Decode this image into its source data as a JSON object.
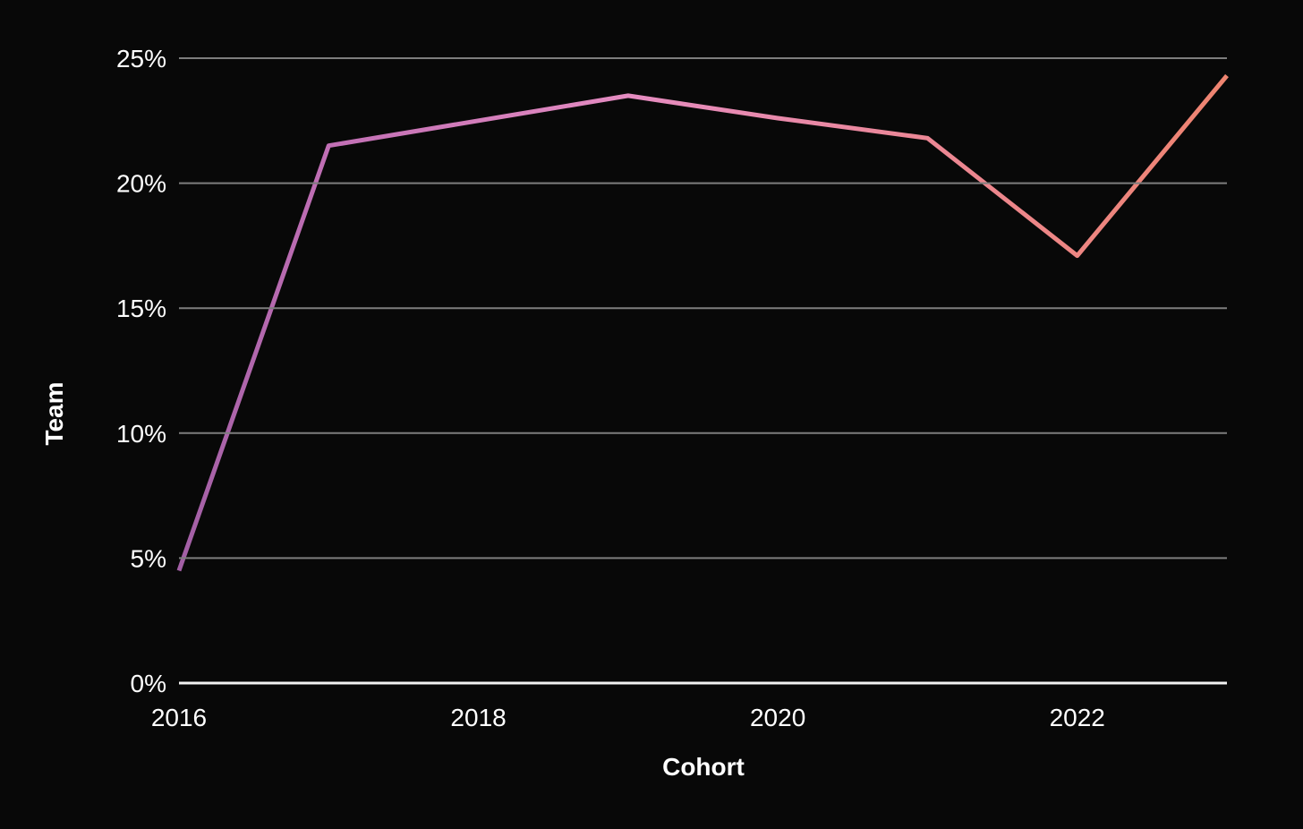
{
  "page": {
    "background": "#080808"
  },
  "chart_data": {
    "type": "line",
    "title": "",
    "xlabel": "Cohort",
    "ylabel": "Team",
    "x": [
      2016,
      2017,
      2018,
      2019,
      2020,
      2021,
      2022,
      2023
    ],
    "series": [
      {
        "name": "Team",
        "values": [
          4.5,
          21.5,
          22.5,
          23.5,
          22.6,
          21.8,
          17.1,
          24.3
        ]
      }
    ],
    "xlim": [
      2016,
      2023
    ],
    "ylim": [
      0,
      25
    ],
    "grid": true,
    "legend_position": "none",
    "y_ticks": [
      {
        "value": 25,
        "label": "25%"
      },
      {
        "value": 20,
        "label": "20%"
      },
      {
        "value": 15,
        "label": "15%"
      },
      {
        "value": 10,
        "label": "10%"
      },
      {
        "value": 5,
        "label": "5%"
      },
      {
        "value": 0,
        "label": "0%"
      }
    ],
    "x_ticks": [
      {
        "value": 2016,
        "label": "2016"
      },
      {
        "value": 2018,
        "label": "2018"
      },
      {
        "value": 2020,
        "label": "2020"
      },
      {
        "value": 2022,
        "label": "2022"
      }
    ],
    "line_gradient": [
      {
        "offset": 0,
        "color": "#a25fa5"
      },
      {
        "offset": 0.143,
        "color": "#c16fb5"
      },
      {
        "offset": 0.43,
        "color": "#e58cc1"
      },
      {
        "offset": 0.715,
        "color": "#ec8795"
      },
      {
        "offset": 1,
        "color": "#ee8470"
      }
    ],
    "colors": {
      "background": "#080808",
      "gridline": "#7d7d7d",
      "baseline": "#f2f2f2",
      "tick_text": "#ffffff",
      "axis_title_text": "#ffffff"
    }
  }
}
